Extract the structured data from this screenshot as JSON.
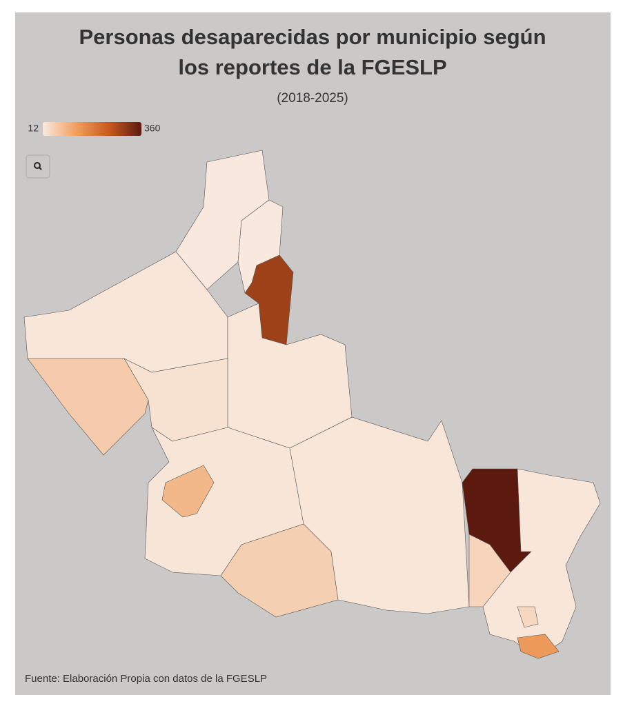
{
  "chart_data": {
    "type": "choropleth",
    "title": "Personas desaparecidas por municipio según",
    "title_line2": "los reportes de la FGESLP",
    "subtitle": "(2018-2025)",
    "color_range": [
      12,
      360
    ],
    "color_scale": [
      "#f8eae0",
      "#f0a060",
      "#c85a20",
      "#5c1a0e"
    ],
    "values": [
      15,
      18,
      290,
      15,
      18,
      60,
      25,
      20,
      90,
      55,
      18,
      360,
      18,
      45,
      140,
      40
    ],
    "source": "Fuente: Elaboración Propia con datos de la FGESLP"
  }
}
